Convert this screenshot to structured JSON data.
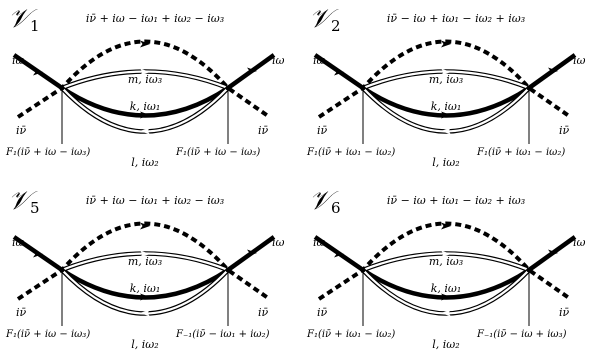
{
  "diagrams": [
    {
      "title": "𝒱",
      "sub": "1",
      "top": "iν̄ + iω − iω₁ + iω₂ − iω₃",
      "in_left": "iω",
      "in_right": "iω",
      "low_left": "iν̄",
      "low_right": "iν̄",
      "line_m": "m, iω₃",
      "line_k": "k, iω₁",
      "line_l": "l, iω₂",
      "vertex_left": "F₁(iν̄ + iω − iω₃)",
      "vertex_right": "F₁(iν̄ + iω − iω₃)"
    },
    {
      "title": "𝒱",
      "sub": "2",
      "top": "iν̄ − iω + iω₁ − iω₂ + iω₃",
      "in_left": "iω",
      "in_right": "iω",
      "low_left": "iν̄",
      "low_right": "iν̄",
      "line_m": "m, iω₃",
      "line_k": "k, iω₁",
      "line_l": "l, iω₂",
      "vertex_left": "F₁(iν̄ + iω₁ − iω₂)",
      "vertex_right": "F₁(iν̄ + iω₁ − iω₂)"
    },
    {
      "title": "𝒱",
      "sub": "5",
      "top": "iν̄ + iω − iω₁ + iω₂ − iω₃",
      "in_left": "iω",
      "in_right": "iω",
      "low_left": "iν̄",
      "low_right": "iν̄",
      "line_m": "m, iω₃",
      "line_k": "k, iω₁",
      "line_l": "l, iω₂",
      "vertex_left": "F₁(iν̄ + iω − iω₃)",
      "vertex_right": "F₋₁(iν̄ − iω₁ + iω₂)"
    },
    {
      "title": "𝒱",
      "sub": "6",
      "top": "iν̄ − iω + iω₁ − iω₂ + iω₃",
      "in_left": "iω",
      "in_right": "iω",
      "low_left": "iν̄",
      "low_right": "iν̄",
      "line_m": "m, iω₃",
      "line_k": "k, iω₁",
      "line_l": "l, iω₂",
      "vertex_left": "F₁(iν̄ + iω₁ − iω₂)",
      "vertex_right": "F₋₁(iν̄ − iω + iω₃)"
    }
  ]
}
